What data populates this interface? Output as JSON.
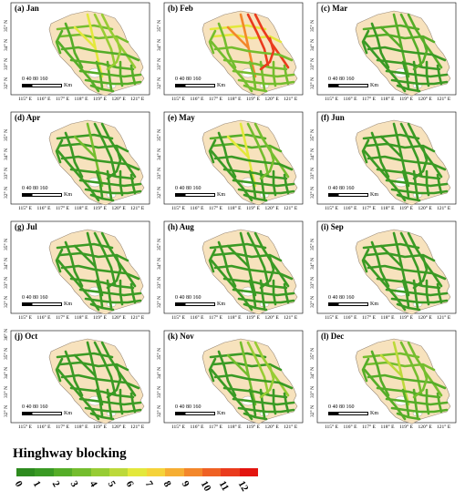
{
  "panels": [
    {
      "label": "(a) Jan",
      "hot": [
        3,
        6,
        4,
        2
      ]
    },
    {
      "label": "(b) Feb",
      "hot": [
        6,
        9,
        11,
        3
      ]
    },
    {
      "label": "(c) Mar",
      "hot": [
        2,
        2,
        2,
        1
      ]
    },
    {
      "label": "(d) Apr",
      "hot": [
        1,
        3,
        1,
        1
      ]
    },
    {
      "label": "(e) May",
      "hot": [
        2,
        6,
        3,
        1
      ]
    },
    {
      "label": "(f) Jun",
      "hot": [
        1,
        1,
        1,
        1
      ]
    },
    {
      "label": "(g) Jul",
      "hot": [
        1,
        1,
        1,
        1
      ]
    },
    {
      "label": "(h) Aug",
      "hot": [
        1,
        1,
        1,
        1
      ]
    },
    {
      "label": "(i) Sep",
      "hot": [
        1,
        1,
        1,
        1
      ]
    },
    {
      "label": "(j) Oct",
      "hot": [
        1,
        1,
        1,
        1
      ]
    },
    {
      "label": "(k) Nov",
      "hot": [
        1,
        3,
        4,
        1
      ]
    },
    {
      "label": "(l) Dec",
      "hot": [
        3,
        5,
        3,
        2
      ]
    }
  ],
  "scale": {
    "numbers": "0  40 80       160",
    "unit": "Km"
  },
  "x_ticks": [
    "115° E",
    "116° E",
    "117° E",
    "118° E",
    "119° E",
    "120° E",
    "121° E"
  ],
  "y_ticks": [
    "32° N",
    "33° N",
    "34° N",
    "35° N"
  ],
  "y_ticks_top": "36° N",
  "legend": {
    "title": "Hinghway blocking",
    "values": [
      "0",
      "1",
      "2",
      "3",
      "4",
      "5",
      "6",
      "7",
      "8",
      "9",
      "10",
      "11",
      "12"
    ],
    "colors": [
      "#2e8b1f",
      "#3a9a24",
      "#55ad28",
      "#74bd2e",
      "#97cc34",
      "#bcd93a",
      "#e3e83c",
      "#f5d33a",
      "#f6ae33",
      "#f3872b",
      "#ef6124",
      "#ea3b1d",
      "#e3140f"
    ]
  },
  "colors": {
    "land": "#f7e2bd",
    "outline": "#9a8a78",
    "lake": "#ffffff"
  }
}
